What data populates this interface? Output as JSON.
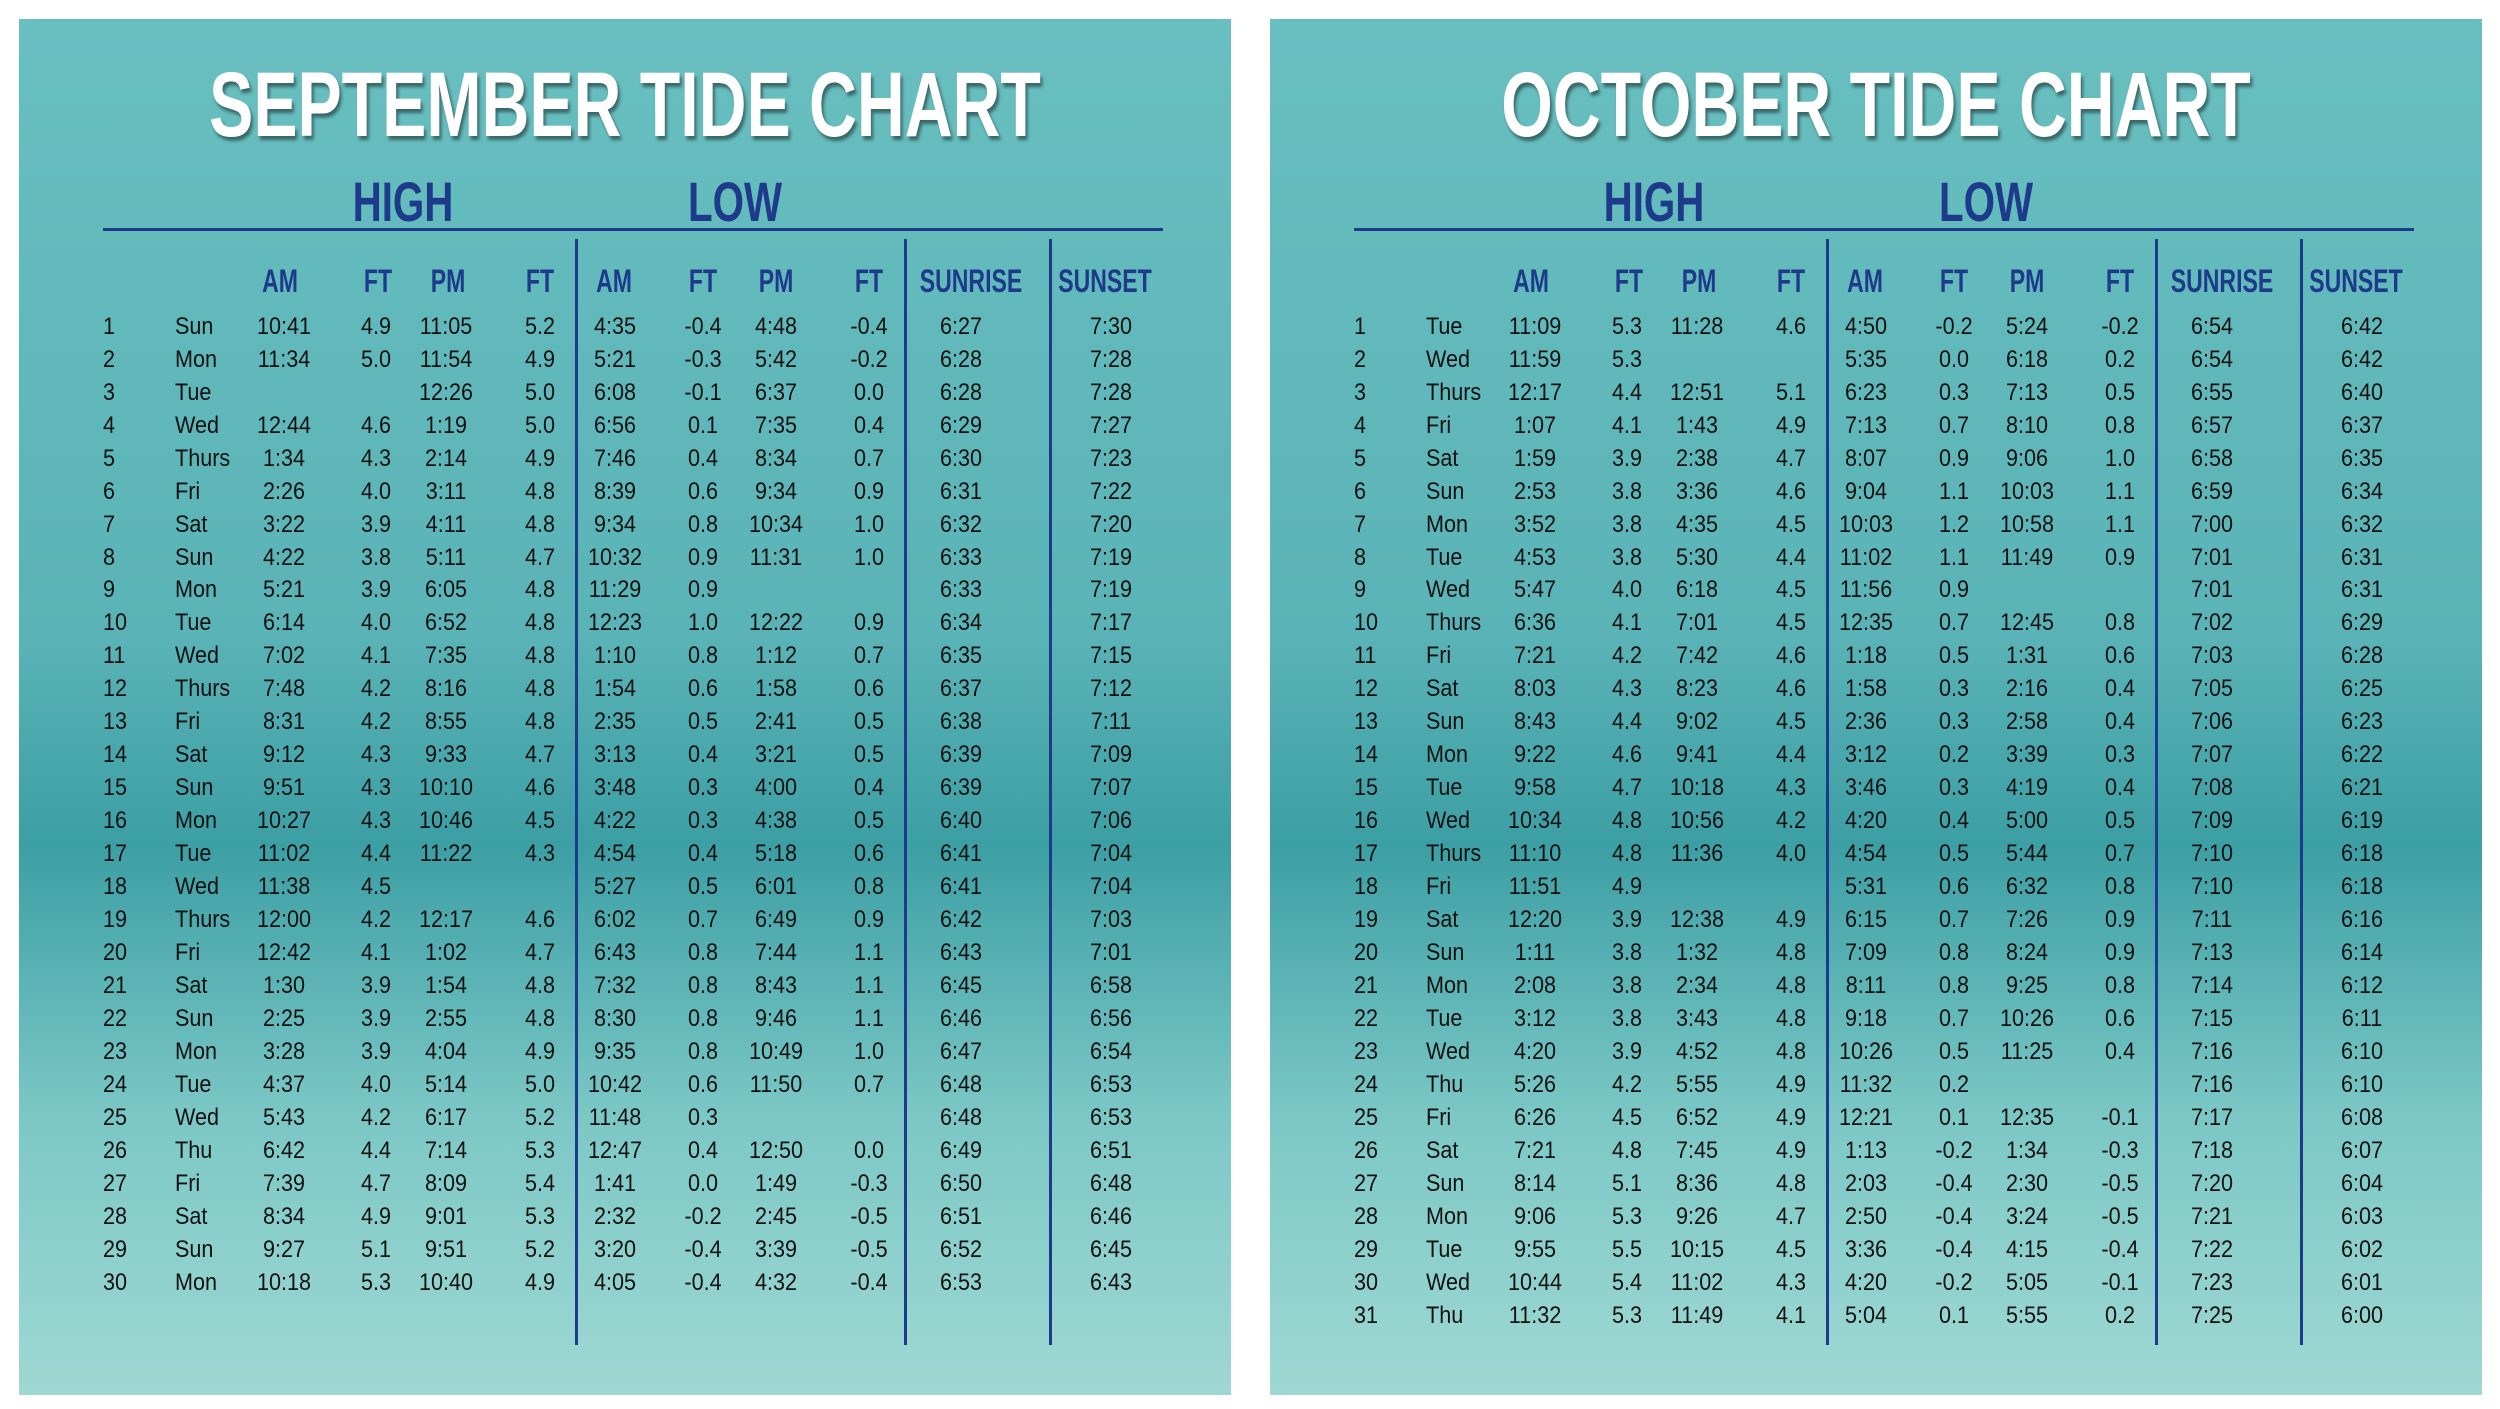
{
  "panels": [
    {
      "title": "SEPTEMBER TIDE CHART",
      "groups": [
        "HIGH",
        "LOW"
      ],
      "columns": [
        "AM",
        "FT",
        "PM",
        "FT",
        "AM",
        "FT",
        "PM",
        "FT",
        "SUNRISE",
        "SUNSET"
      ],
      "rows": [
        [
          "1",
          "Sun",
          "10:41",
          "4.9",
          "11:05",
          "5.2",
          "4:35",
          "-0.4",
          "4:48",
          "-0.4",
          "6:27",
          "7:30"
        ],
        [
          "2",
          "Mon",
          "11:34",
          "5.0",
          "11:54",
          "4.9",
          "5:21",
          "-0.3",
          "5:42",
          "-0.2",
          "6:28",
          "7:28"
        ],
        [
          "3",
          "Tue",
          null,
          null,
          "12:26",
          "5.0",
          "6:08",
          "-0.1",
          "6:37",
          "0.0",
          "6:28",
          "7:28"
        ],
        [
          "4",
          "Wed",
          "12:44",
          "4.6",
          "1:19",
          "5.0",
          "6:56",
          "0.1",
          "7:35",
          "0.4",
          "6:29",
          "7:27"
        ],
        [
          "5",
          "Thurs",
          "1:34",
          "4.3",
          "2:14",
          "4.9",
          "7:46",
          "0.4",
          "8:34",
          "0.7",
          "6:30",
          "7:23"
        ],
        [
          "6",
          "Fri",
          "2:26",
          "4.0",
          "3:11",
          "4.8",
          "8:39",
          "0.6",
          "9:34",
          "0.9",
          "6:31",
          "7:22"
        ],
        [
          "7",
          "Sat",
          "3:22",
          "3.9",
          "4:11",
          "4.8",
          "9:34",
          "0.8",
          "10:34",
          "1.0",
          "6:32",
          "7:20"
        ],
        [
          "8",
          "Sun",
          "4:22",
          "3.8",
          "5:11",
          "4.7",
          "10:32",
          "0.9",
          "11:31",
          "1.0",
          "6:33",
          "7:19"
        ],
        [
          "9",
          "Mon",
          "5:21",
          "3.9",
          "6:05",
          "4.8",
          "11:29",
          "0.9",
          null,
          null,
          "6:33",
          "7:19"
        ],
        [
          "10",
          "Tue",
          "6:14",
          "4.0",
          "6:52",
          "4.8",
          "12:23",
          "1.0",
          "12:22",
          "0.9",
          "6:34",
          "7:17"
        ],
        [
          "11",
          "Wed",
          "7:02",
          "4.1",
          "7:35",
          "4.8",
          "1:10",
          "0.8",
          "1:12",
          "0.7",
          "6:35",
          "7:15"
        ],
        [
          "12",
          "Thurs",
          "7:48",
          "4.2",
          "8:16",
          "4.8",
          "1:54",
          "0.6",
          "1:58",
          "0.6",
          "6:37",
          "7:12"
        ],
        [
          "13",
          "Fri",
          "8:31",
          "4.2",
          "8:55",
          "4.8",
          "2:35",
          "0.5",
          "2:41",
          "0.5",
          "6:38",
          "7:11"
        ],
        [
          "14",
          "Sat",
          "9:12",
          "4.3",
          "9:33",
          "4.7",
          "3:13",
          "0.4",
          "3:21",
          "0.5",
          "6:39",
          "7:09"
        ],
        [
          "15",
          "Sun",
          "9:51",
          "4.3",
          "10:10",
          "4.6",
          "3:48",
          "0.3",
          "4:00",
          "0.4",
          "6:39",
          "7:07"
        ],
        [
          "16",
          "Mon",
          "10:27",
          "4.3",
          "10:46",
          "4.5",
          "4:22",
          "0.3",
          "4:38",
          "0.5",
          "6:40",
          "7:06"
        ],
        [
          "17",
          "Tue",
          "11:02",
          "4.4",
          "11:22",
          "4.3",
          "4:54",
          "0.4",
          "5:18",
          "0.6",
          "6:41",
          "7:04"
        ],
        [
          "18",
          "Wed",
          "11:38",
          "4.5",
          null,
          null,
          "5:27",
          "0.5",
          "6:01",
          "0.8",
          "6:41",
          "7:04"
        ],
        [
          "19",
          "Thurs",
          "12:00",
          "4.2",
          "12:17",
          "4.6",
          "6:02",
          "0.7",
          "6:49",
          "0.9",
          "6:42",
          "7:03"
        ],
        [
          "20",
          "Fri",
          "12:42",
          "4.1",
          "1:02",
          "4.7",
          "6:43",
          "0.8",
          "7:44",
          "1.1",
          "6:43",
          "7:01"
        ],
        [
          "21",
          "Sat",
          "1:30",
          "3.9",
          "1:54",
          "4.8",
          "7:32",
          "0.8",
          "8:43",
          "1.1",
          "6:45",
          "6:58"
        ],
        [
          "22",
          "Sun",
          "2:25",
          "3.9",
          "2:55",
          "4.8",
          "8:30",
          "0.8",
          "9:46",
          "1.1",
          "6:46",
          "6:56"
        ],
        [
          "23",
          "Mon",
          "3:28",
          "3.9",
          "4:04",
          "4.9",
          "9:35",
          "0.8",
          "10:49",
          "1.0",
          "6:47",
          "6:54"
        ],
        [
          "24",
          "Tue",
          "4:37",
          "4.0",
          "5:14",
          "5.0",
          "10:42",
          "0.6",
          "11:50",
          "0.7",
          "6:48",
          "6:53"
        ],
        [
          "25",
          "Wed",
          "5:43",
          "4.2",
          "6:17",
          "5.2",
          "11:48",
          "0.3",
          null,
          null,
          "6:48",
          "6:53"
        ],
        [
          "26",
          "Thu",
          "6:42",
          "4.4",
          "7:14",
          "5.3",
          "12:47",
          "0.4",
          "12:50",
          "0.0",
          "6:49",
          "6:51"
        ],
        [
          "27",
          "Fri",
          "7:39",
          "4.7",
          "8:09",
          "5.4",
          "1:41",
          "0.0",
          "1:49",
          "-0.3",
          "6:50",
          "6:48"
        ],
        [
          "28",
          "Sat",
          "8:34",
          "4.9",
          "9:01",
          "5.3",
          "2:32",
          "-0.2",
          "2:45",
          "-0.5",
          "6:51",
          "6:46"
        ],
        [
          "29",
          "Sun",
          "9:27",
          "5.1",
          "9:51",
          "5.2",
          "3:20",
          "-0.4",
          "3:39",
          "-0.5",
          "6:52",
          "6:45"
        ],
        [
          "30",
          "Mon",
          "10:18",
          "5.3",
          "10:40",
          "4.9",
          "4:05",
          "-0.4",
          "4:32",
          "-0.4",
          "6:53",
          "6:43"
        ]
      ]
    },
    {
      "title": "OCTOBER TIDE CHART",
      "groups": [
        "HIGH",
        "LOW"
      ],
      "columns": [
        "AM",
        "FT",
        "PM",
        "FT",
        "AM",
        "FT",
        "PM",
        "FT",
        "SUNRISE",
        "SUNSET"
      ],
      "rows": [
        [
          "1",
          "Tue",
          "11:09",
          "5.3",
          "11:28",
          "4.6",
          "4:50",
          "-0.2",
          "5:24",
          "-0.2",
          "6:54",
          "6:42"
        ],
        [
          "2",
          "Wed",
          "11:59",
          "5.3",
          null,
          null,
          "5:35",
          "0.0",
          "6:18",
          "0.2",
          "6:54",
          "6:42"
        ],
        [
          "3",
          "Thurs",
          "12:17",
          "4.4",
          "12:51",
          "5.1",
          "6:23",
          "0.3",
          "7:13",
          "0.5",
          "6:55",
          "6:40"
        ],
        [
          "4",
          "Fri",
          "1:07",
          "4.1",
          "1:43",
          "4.9",
          "7:13",
          "0.7",
          "8:10",
          "0.8",
          "6:57",
          "6:37"
        ],
        [
          "5",
          "Sat",
          "1:59",
          "3.9",
          "2:38",
          "4.7",
          "8:07",
          "0.9",
          "9:06",
          "1.0",
          "6:58",
          "6:35"
        ],
        [
          "6",
          "Sun",
          "2:53",
          "3.8",
          "3:36",
          "4.6",
          "9:04",
          "1.1",
          "10:03",
          "1.1",
          "6:59",
          "6:34"
        ],
        [
          "7",
          "Mon",
          "3:52",
          "3.8",
          "4:35",
          "4.5",
          "10:03",
          "1.2",
          "10:58",
          "1.1",
          "7:00",
          "6:32"
        ],
        [
          "8",
          "Tue",
          "4:53",
          "3.8",
          "5:30",
          "4.4",
          "11:02",
          "1.1",
          "11:49",
          "0.9",
          "7:01",
          "6:31"
        ],
        [
          "9",
          "Wed",
          "5:47",
          "4.0",
          "6:18",
          "4.5",
          "11:56",
          "0.9",
          null,
          null,
          "7:01",
          "6:31"
        ],
        [
          "10",
          "Thurs",
          "6:36",
          "4.1",
          "7:01",
          "4.5",
          "12:35",
          "0.7",
          "12:45",
          "0.8",
          "7:02",
          "6:29"
        ],
        [
          "11",
          "Fri",
          "7:21",
          "4.2",
          "7:42",
          "4.6",
          "1:18",
          "0.5",
          "1:31",
          "0.6",
          "7:03",
          "6:28"
        ],
        [
          "12",
          "Sat",
          "8:03",
          "4.3",
          "8:23",
          "4.6",
          "1:58",
          "0.3",
          "2:16",
          "0.4",
          "7:05",
          "6:25"
        ],
        [
          "13",
          "Sun",
          "8:43",
          "4.4",
          "9:02",
          "4.5",
          "2:36",
          "0.3",
          "2:58",
          "0.4",
          "7:06",
          "6:23"
        ],
        [
          "14",
          "Mon",
          "9:22",
          "4.6",
          "9:41",
          "4.4",
          "3:12",
          "0.2",
          "3:39",
          "0.3",
          "7:07",
          "6:22"
        ],
        [
          "15",
          "Tue",
          "9:58",
          "4.7",
          "10:18",
          "4.3",
          "3:46",
          "0.3",
          "4:19",
          "0.4",
          "7:08",
          "6:21"
        ],
        [
          "16",
          "Wed",
          "10:34",
          "4.8",
          "10:56",
          "4.2",
          "4:20",
          "0.4",
          "5:00",
          "0.5",
          "7:09",
          "6:19"
        ],
        [
          "17",
          "Thurs",
          "11:10",
          "4.8",
          "11:36",
          "4.0",
          "4:54",
          "0.5",
          "5:44",
          "0.7",
          "7:10",
          "6:18"
        ],
        [
          "18",
          "Fri",
          "11:51",
          "4.9",
          null,
          null,
          "5:31",
          "0.6",
          "6:32",
          "0.8",
          "7:10",
          "6:18"
        ],
        [
          "19",
          "Sat",
          "12:20",
          "3.9",
          "12:38",
          "4.9",
          "6:15",
          "0.7",
          "7:26",
          "0.9",
          "7:11",
          "6:16"
        ],
        [
          "20",
          "Sun",
          "1:11",
          "3.8",
          "1:32",
          "4.8",
          "7:09",
          "0.8",
          "8:24",
          "0.9",
          "7:13",
          "6:14"
        ],
        [
          "21",
          "Mon",
          "2:08",
          "3.8",
          "2:34",
          "4.8",
          "8:11",
          "0.8",
          "9:25",
          "0.8",
          "7:14",
          "6:12"
        ],
        [
          "22",
          "Tue",
          "3:12",
          "3.8",
          "3:43",
          "4.8",
          "9:18",
          "0.7",
          "10:26",
          "0.6",
          "7:15",
          "6:11"
        ],
        [
          "23",
          "Wed",
          "4:20",
          "3.9",
          "4:52",
          "4.8",
          "10:26",
          "0.5",
          "11:25",
          "0.4",
          "7:16",
          "6:10"
        ],
        [
          "24",
          "Thu",
          "5:26",
          "4.2",
          "5:55",
          "4.9",
          "11:32",
          "0.2",
          null,
          null,
          "7:16",
          "6:10"
        ],
        [
          "25",
          "Fri",
          "6:26",
          "4.5",
          "6:52",
          "4.9",
          "12:21",
          "0.1",
          "12:35",
          "-0.1",
          "7:17",
          "6:08"
        ],
        [
          "26",
          "Sat",
          "7:21",
          "4.8",
          "7:45",
          "4.9",
          "1:13",
          "-0.2",
          "1:34",
          "-0.3",
          "7:18",
          "6:07"
        ],
        [
          "27",
          "Sun",
          "8:14",
          "5.1",
          "8:36",
          "4.8",
          "2:03",
          "-0.4",
          "2:30",
          "-0.5",
          "7:20",
          "6:04"
        ],
        [
          "28",
          "Mon",
          "9:06",
          "5.3",
          "9:26",
          "4.7",
          "2:50",
          "-0.4",
          "3:24",
          "-0.5",
          "7:21",
          "6:03"
        ],
        [
          "29",
          "Tue",
          "9:55",
          "5.5",
          "10:15",
          "4.5",
          "3:36",
          "-0.4",
          "4:15",
          "-0.4",
          "7:22",
          "6:02"
        ],
        [
          "30",
          "Wed",
          "10:44",
          "5.4",
          "11:02",
          "4.3",
          "4:20",
          "-0.2",
          "5:05",
          "-0.1",
          "7:23",
          "6:01"
        ],
        [
          "31",
          "Thu",
          "11:32",
          "5.3",
          "11:49",
          "4.1",
          "5:04",
          "0.1",
          "5:55",
          "0.2",
          "7:25",
          "6:00"
        ]
      ]
    }
  ]
}
